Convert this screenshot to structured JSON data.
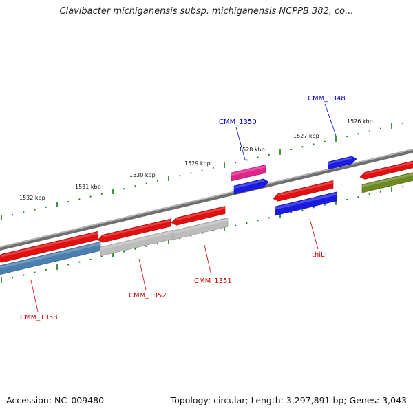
{
  "title": "Clavibacter michiganensis subsp. michiganensis NCPPB 382, co...",
  "footer": {
    "accession": "Accession: NC_009480",
    "topology": "Topology: circular; Length: 3,297,891 bp; Genes: 3,043"
  },
  "kbp_ticks": [
    {
      "label": "1532 kbp"
    },
    {
      "label": "1531 kbp"
    },
    {
      "label": "1530 kbp"
    },
    {
      "label": "1529 kbp"
    },
    {
      "label": "1528 kbp"
    },
    {
      "label": "1527 kbp"
    },
    {
      "label": "1526 kbp"
    }
  ],
  "gene_labels": [
    {
      "text": "CMM_1350",
      "color": "#0000cc"
    },
    {
      "text": "CMM_1348",
      "color": "#0000cc"
    },
    {
      "text": "thiL",
      "color": "#cc0000"
    },
    {
      "text": "CMM_1351",
      "color": "#cc0000"
    },
    {
      "text": "CMM_1352",
      "color": "#cc0000"
    },
    {
      "text": "CMM_1353",
      "color": "#cc0000"
    }
  ],
  "colors": {
    "backbone": "#7a7a7a",
    "cds": "#e01010",
    "rna": "#1a1ae0",
    "pseudo": "#bcbcbc",
    "repeat": "#4a7fb0",
    "misc": "#6b8a22",
    "highlight": "#e0258a",
    "tick": "#117a11"
  }
}
